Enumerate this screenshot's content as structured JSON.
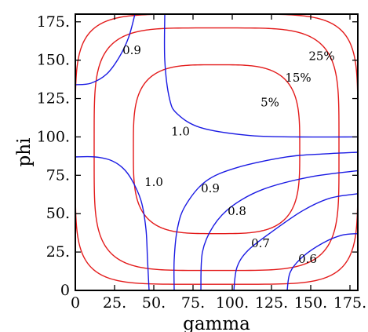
{
  "chart_data": {
    "type": "contour",
    "xlabel": "gamma",
    "ylabel": "phi",
    "xlim": [
      0,
      180
    ],
    "ylim": [
      0,
      180
    ],
    "grid": false,
    "x_ticks": [
      {
        "value": 0,
        "label": "0"
      },
      {
        "value": 25,
        "label": "25."
      },
      {
        "value": 50,
        "label": "50."
      },
      {
        "value": 75,
        "label": "75."
      },
      {
        "value": 100,
        "label": "100."
      },
      {
        "value": 125,
        "label": "125."
      },
      {
        "value": 150,
        "label": "150."
      },
      {
        "value": 175,
        "label": "175."
      }
    ],
    "y_ticks": [
      {
        "value": 0,
        "label": "0"
      },
      {
        "value": 25,
        "label": "25."
      },
      {
        "value": 50,
        "label": "50."
      },
      {
        "value": 75,
        "label": "75."
      },
      {
        "value": 100,
        "label": "100."
      },
      {
        "value": 125,
        "label": "125."
      },
      {
        "value": 150,
        "label": "150."
      },
      {
        "value": 175,
        "label": "175."
      }
    ],
    "colors": {
      "red": "#e31a1a",
      "blue": "#1a1ae3",
      "axis": "#000000"
    },
    "red_contours": [
      {
        "label": "5%",
        "center": [
          90,
          92
        ],
        "halfwidth": [
          53,
          55
        ],
        "exponent": 3.6,
        "label_pos": [
          124,
          120
        ]
      },
      {
        "label": "15%",
        "center": [
          90,
          92
        ],
        "halfwidth": [
          78,
          79
        ],
        "exponent": 4.6,
        "label_pos": [
          142,
          136
        ]
      },
      {
        "label": "25%",
        "center": [
          90,
          92
        ],
        "halfwidth": [
          90,
          88
        ],
        "exponent": 5.5,
        "label_pos": [
          157,
          150
        ]
      }
    ],
    "blue_contours": [
      {
        "label": "0.9",
        "points": [
          [
            0,
            134
          ],
          [
            10,
            135
          ],
          [
            20,
            141
          ],
          [
            28,
            152
          ],
          [
            34,
            165
          ],
          [
            38,
            180
          ]
        ],
        "label_pos": [
          36,
          154
        ]
      },
      {
        "label": "1.0",
        "points": [
          [
            57,
            180
          ],
          [
            57,
            150
          ],
          [
            60,
            125
          ],
          [
            65,
            115
          ],
          [
            80,
            106
          ],
          [
            110,
            101
          ],
          [
            140,
            100
          ],
          [
            180,
            100
          ]
        ],
        "label_pos": [
          67,
          101
        ]
      },
      {
        "label": "1.0",
        "points": [
          [
            0,
            87
          ],
          [
            12,
            87
          ],
          [
            22,
            85
          ],
          [
            30,
            80
          ],
          [
            36,
            72
          ],
          [
            42,
            58
          ],
          [
            45,
            40
          ],
          [
            46,
            20
          ],
          [
            47,
            0
          ]
        ],
        "label_pos": [
          50,
          68
        ]
      },
      {
        "label": "0.9",
        "points": [
          [
            63,
            0
          ],
          [
            63,
            20
          ],
          [
            65,
            40
          ],
          [
            70,
            55
          ],
          [
            83,
            71
          ],
          [
            103,
            80
          ],
          [
            135,
            87
          ],
          [
            160,
            89
          ],
          [
            180,
            90
          ]
        ],
        "label_pos": [
          86,
          64
        ]
      },
      {
        "label": "0.8",
        "points": [
          [
            80,
            0
          ],
          [
            81,
            25
          ],
          [
            88,
            42
          ],
          [
            100,
            55
          ],
          [
            120,
            66
          ],
          [
            150,
            74
          ],
          [
            180,
            78
          ]
        ],
        "label_pos": [
          103,
          49
        ]
      },
      {
        "label": "0.7",
        "points": [
          [
            101,
            0
          ],
          [
            103,
            15
          ],
          [
            110,
            26
          ],
          [
            125,
            38
          ],
          [
            145,
            52
          ],
          [
            162,
            60
          ],
          [
            180,
            63
          ]
        ],
        "label_pos": [
          118,
          28
        ]
      },
      {
        "label": "0.6",
        "points": [
          [
            135,
            0
          ],
          [
            137,
            12
          ],
          [
            145,
            22
          ],
          [
            158,
            31
          ],
          [
            170,
            36
          ],
          [
            180,
            37
          ]
        ],
        "label_pos": [
          148,
          18
        ]
      }
    ]
  }
}
